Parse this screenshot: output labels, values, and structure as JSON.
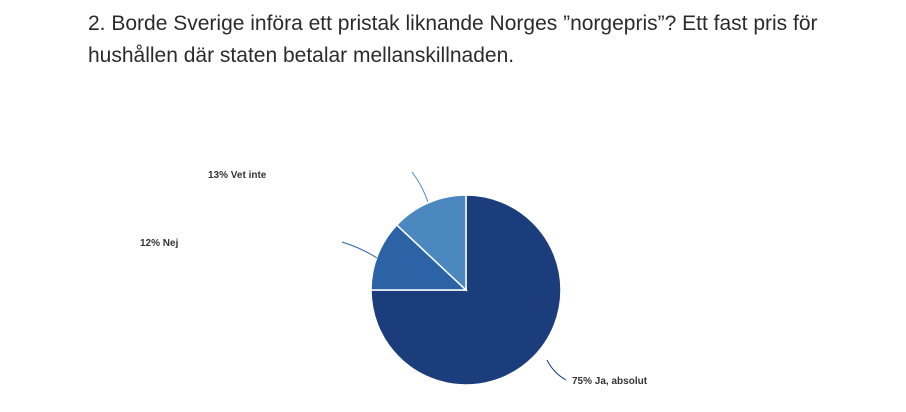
{
  "question": {
    "text": "2. Borde Sverige införa ett pristak liknande Norges ”norgepris”? Ett fast pris för hushållen där staten betalar mellanskillnaden."
  },
  "chart_data": {
    "type": "pie",
    "title": "",
    "start_angle_deg": 0,
    "direction": "clockwise",
    "slices": [
      {
        "label": "Ja, absolut",
        "value": 75,
        "display": "75% Ja, absolut",
        "color": "#1b3d7c"
      },
      {
        "label": "Nej",
        "value": 12,
        "display": "12% Nej",
        "color": "#2c63a6"
      },
      {
        "label": "Vet inte",
        "value": 13,
        "display": "13% Vet inte",
        "color": "#4a88bf"
      }
    ],
    "legend": "none"
  }
}
